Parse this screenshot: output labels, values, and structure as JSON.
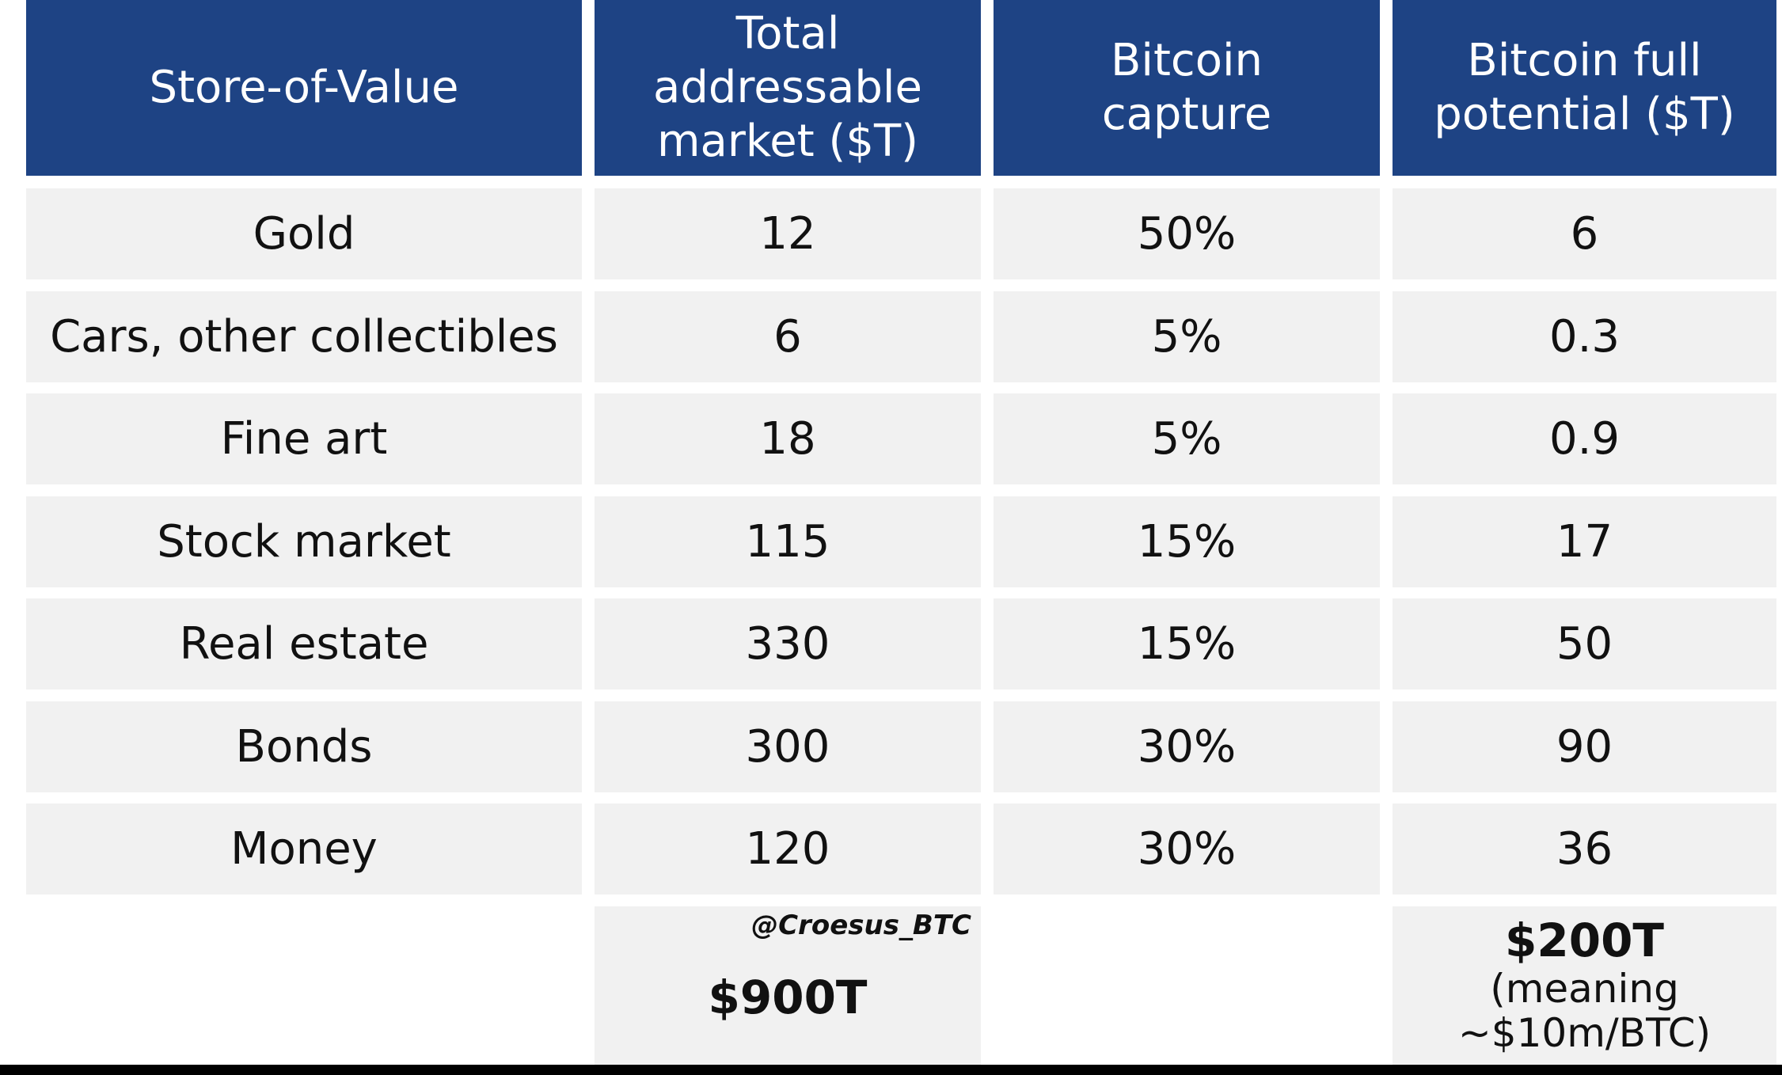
{
  "colors": {
    "header_bg": "#1e4384",
    "header_text": "#ffffff",
    "cell_bg": "#f1f1f1",
    "text": "#111111"
  },
  "headers": [
    [
      "Store-of-Value"
    ],
    [
      "Total",
      "addressable",
      "market ($T)"
    ],
    [
      "Bitcoin",
      "capture"
    ],
    [
      "Bitcoin full",
      "potential ($T)"
    ]
  ],
  "rows": [
    [
      "Gold",
      "12",
      "50%",
      "6"
    ],
    [
      "Cars, other collectibles",
      "6",
      "5%",
      "0.3"
    ],
    [
      "Fine art",
      "18",
      "5%",
      "0.9"
    ],
    [
      "Stock market",
      "115",
      "15%",
      "17"
    ],
    [
      "Real estate",
      "330",
      "15%",
      "50"
    ],
    [
      "Bonds",
      "300",
      "30%",
      "90"
    ],
    [
      "Money",
      "120",
      "30%",
      "36"
    ]
  ],
  "totals": {
    "watermark": "@Croesus_BTC",
    "market_total": "$900T",
    "potential_total": "$200T",
    "potential_note": [
      "(meaning",
      "~$10m/BTC)"
    ]
  }
}
